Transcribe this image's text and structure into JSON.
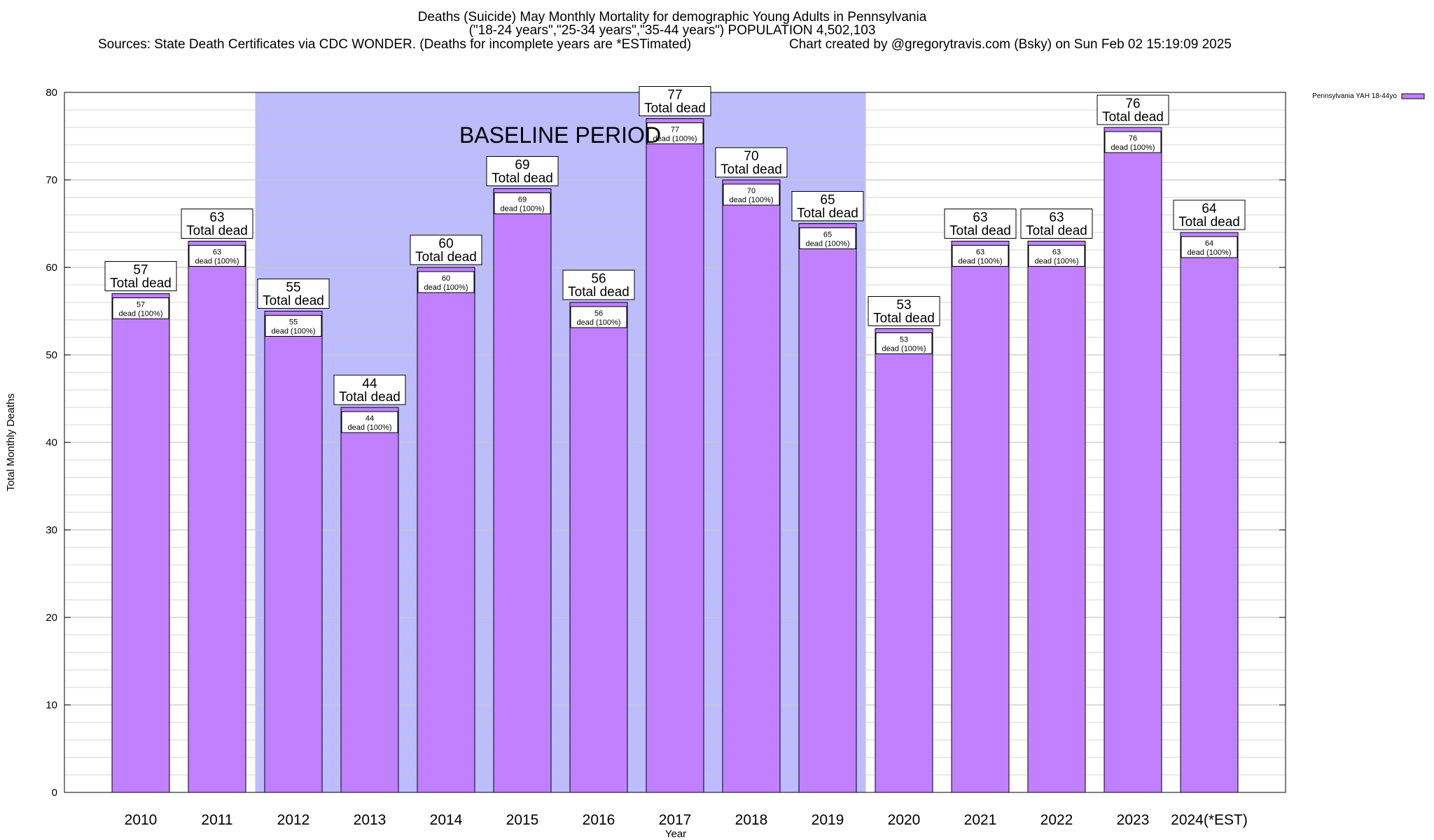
{
  "chart_data": {
    "type": "bar",
    "title": "Deaths (Suicide) May Monthly Mortality for demographic Young Adults in Pennsylvania",
    "subtitle": "(\"18-24 years\",\"25-34 years\",\"35-44 years\") POPULATION 4,502,103",
    "source_left": "Sources: State Death Certificates via CDC WONDER. (Deaths for incomplete years are *ESTimated)",
    "source_right": "Chart created by @gregorytravis.com (Bsky) on Sun Feb 02 15:19:09 2025",
    "xlabel": "Year",
    "ylabel": "Total Monthly Deaths",
    "ylim": [
      0,
      80
    ],
    "yticks": [
      0,
      10,
      20,
      30,
      40,
      50,
      60,
      70,
      80
    ],
    "grid": true,
    "legend_position": "top-right",
    "categories": [
      "2010",
      "2011",
      "2012",
      "2013",
      "2014",
      "2015",
      "2016",
      "2017",
      "2018",
      "2019",
      "2020",
      "2021",
      "2022",
      "2023",
      "2024(*EST)"
    ],
    "series": [
      {
        "name": "Pennsylvania YAH 18-44yo",
        "values": [
          57,
          63,
          55,
          44,
          60,
          69,
          56,
          77,
          70,
          65,
          53,
          63,
          63,
          76,
          64
        ],
        "inner_labels": [
          "57",
          "63",
          "55",
          "44",
          "60",
          "69",
          "56",
          "77",
          "70",
          "65",
          "53",
          "63",
          "63",
          "76",
          "64"
        ]
      }
    ],
    "top_label_suffix": "Total dead",
    "inner_label_suffix": "dead (100%)",
    "baseline_period": {
      "label": "BASELINE PERIOD",
      "start_category": "2012",
      "end_category": "2019"
    },
    "colors": {
      "bar_fill": "#c080ff",
      "bar_stroke": "#000000",
      "baseline_fill": "#bcbcff",
      "grid": "#c8c8c8",
      "background": "#ffffff"
    }
  }
}
